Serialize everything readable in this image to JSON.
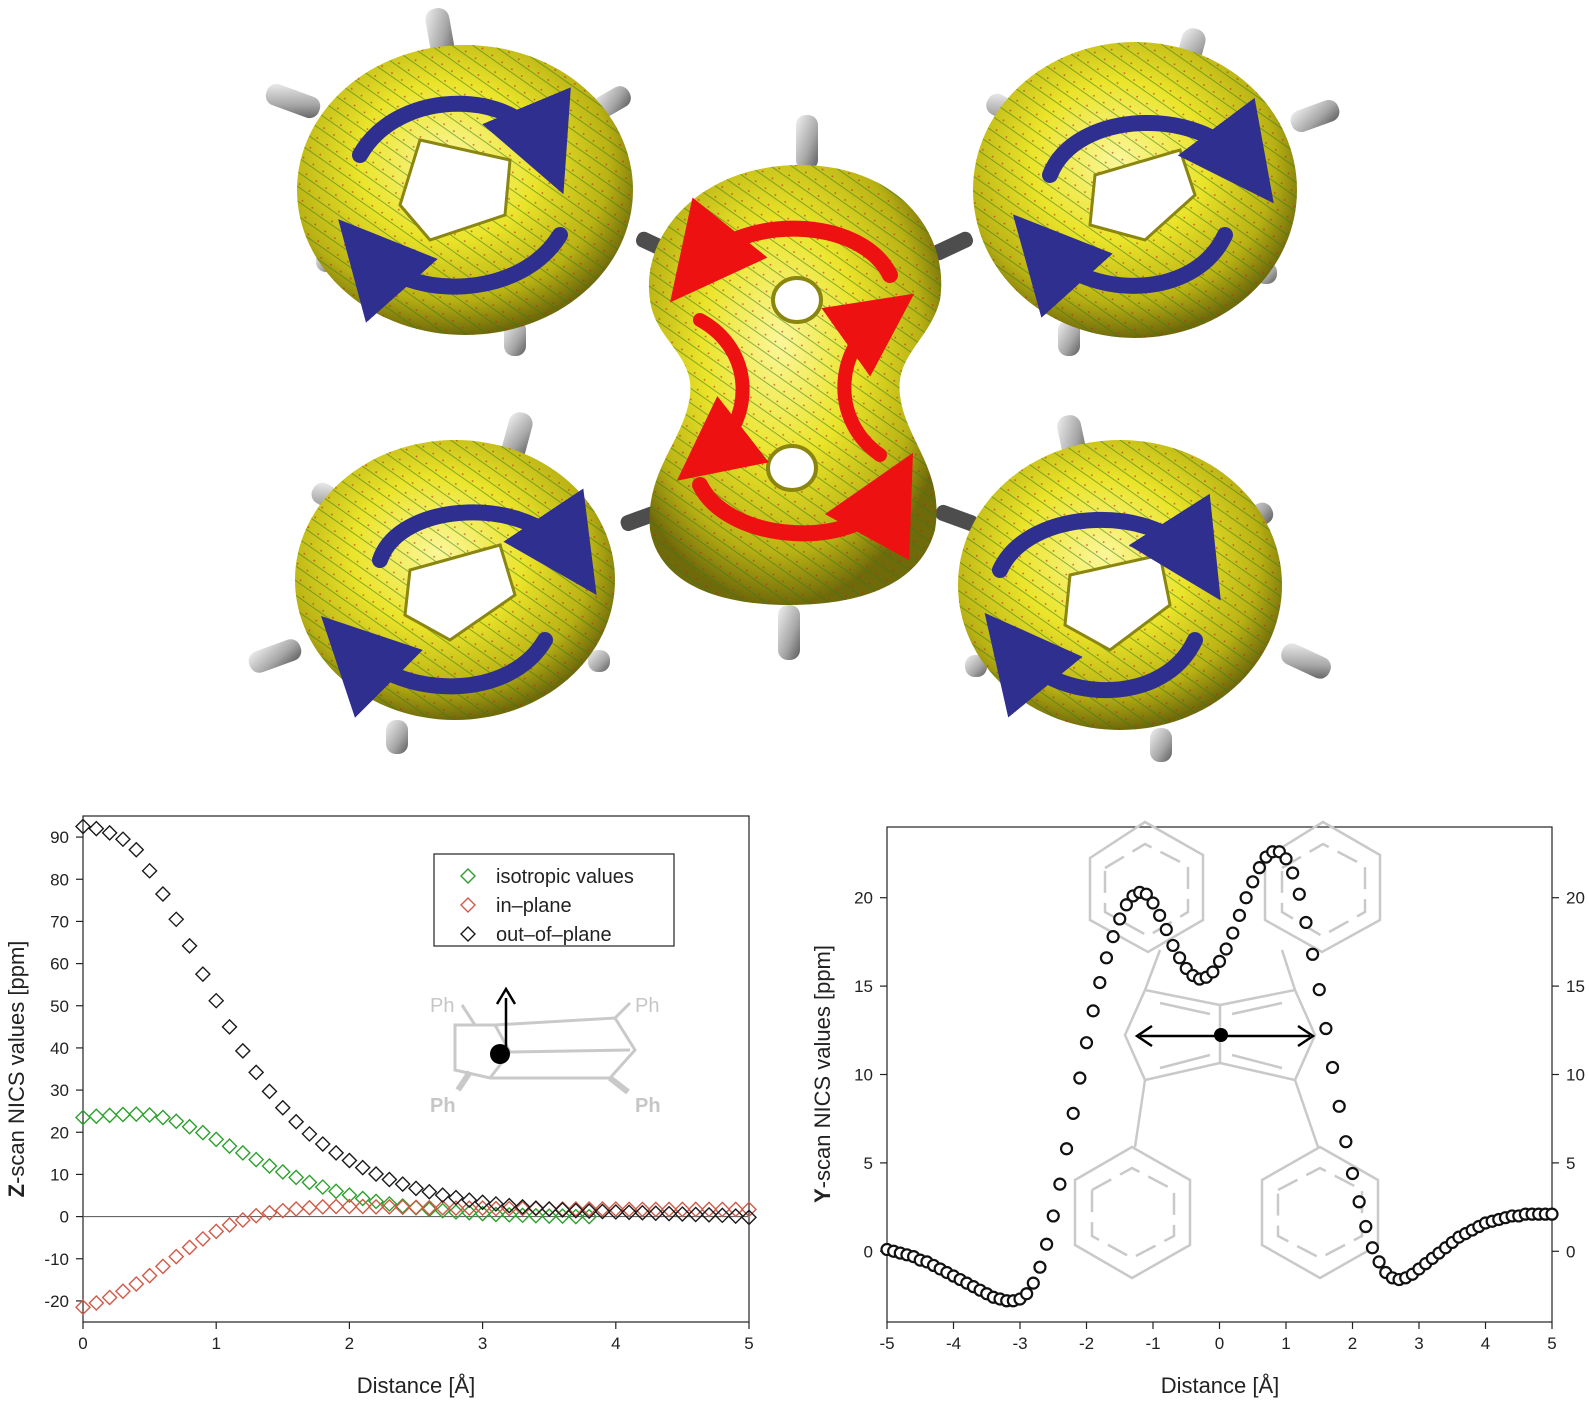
{
  "chart_data": [
    {
      "type": "scatter",
      "xlabel": "Distance [Å]",
      "ylabel_bold": "Z",
      "ylabel_rest": "-scan NICS values [ppm]",
      "xlim": [
        0,
        5
      ],
      "ylim": [
        -25,
        95
      ],
      "xticks": [
        "0",
        "1",
        "2",
        "3",
        "4",
        "5"
      ],
      "yticks": [
        "-20",
        "-10",
        "0",
        "10",
        "20",
        "30",
        "40",
        "50",
        "60",
        "70",
        "80",
        "90"
      ],
      "zero_line": true,
      "legend": {
        "position": "top-right"
      },
      "series": [
        {
          "name": "isotropic values",
          "color": "#2ca02c",
          "x": [
            0.0,
            0.1,
            0.2,
            0.3,
            0.4,
            0.5,
            0.6,
            0.7,
            0.8,
            0.9,
            1.0,
            1.1,
            1.2,
            1.3,
            1.4,
            1.5,
            1.6,
            1.7,
            1.8,
            1.9,
            2.0,
            2.1,
            2.2,
            2.3,
            2.4,
            2.5,
            2.6,
            2.7,
            2.8,
            2.9,
            3.0,
            3.1,
            3.2,
            3.3,
            3.4,
            3.5,
            3.6,
            3.7,
            3.8
          ],
          "y": [
            23.5,
            23.8,
            24.0,
            24.2,
            24.3,
            24.1,
            23.5,
            22.6,
            21.3,
            19.9,
            18.3,
            16.7,
            15.1,
            13.5,
            12.0,
            10.6,
            9.3,
            8.1,
            7.0,
            6.0,
            5.1,
            4.3,
            3.6,
            3.0,
            2.5,
            2.1,
            1.7,
            1.4,
            1.1,
            0.9,
            0.7,
            0.5,
            0.4,
            0.3,
            0.2,
            0.1,
            0.1,
            0.0,
            0.0
          ]
        },
        {
          "name": "in–plane",
          "color": "#d05a48",
          "x": [
            0.0,
            0.1,
            0.2,
            0.3,
            0.4,
            0.5,
            0.6,
            0.7,
            0.8,
            0.9,
            1.0,
            1.1,
            1.2,
            1.3,
            1.4,
            1.5,
            1.6,
            1.7,
            1.8,
            1.9,
            2.0,
            2.1,
            2.2,
            2.3,
            2.4,
            2.5,
            2.6,
            2.7,
            2.8,
            2.9,
            3.0,
            3.1,
            3.2,
            3.3,
            3.4,
            3.5,
            3.6,
            3.7,
            3.8,
            3.9,
            4.0,
            4.1,
            4.2,
            4.3,
            4.4,
            4.5,
            4.6,
            4.7,
            4.8,
            4.9,
            5.0
          ],
          "y": [
            -21.5,
            -20.5,
            -19.2,
            -17.7,
            -16.0,
            -14.0,
            -11.8,
            -9.5,
            -7.3,
            -5.3,
            -3.5,
            -2.0,
            -0.8,
            0.2,
            0.9,
            1.4,
            1.8,
            2.1,
            2.3,
            2.4,
            2.4,
            2.4,
            2.3,
            2.3,
            2.2,
            2.2,
            2.1,
            2.1,
            2.0,
            2.0,
            2.0,
            1.9,
            1.9,
            1.9,
            1.9,
            1.8,
            1.8,
            1.8,
            1.8,
            1.8,
            1.8,
            1.7,
            1.7,
            1.7,
            1.7,
            1.7,
            1.7,
            1.7,
            1.7,
            1.7,
            1.7
          ]
        },
        {
          "name": "out–of–plane",
          "color": "#1a1a1a",
          "x": [
            0.0,
            0.1,
            0.2,
            0.3,
            0.4,
            0.5,
            0.6,
            0.7,
            0.8,
            0.9,
            1.0,
            1.1,
            1.2,
            1.3,
            1.4,
            1.5,
            1.6,
            1.7,
            1.8,
            1.9,
            2.0,
            2.1,
            2.2,
            2.3,
            2.4,
            2.5,
            2.6,
            2.7,
            2.8,
            2.9,
            3.0,
            3.1,
            3.2,
            3.3,
            3.4,
            3.5,
            3.6,
            3.7,
            3.8,
            3.9,
            4.0,
            4.1,
            4.2,
            4.3,
            4.4,
            4.5,
            4.6,
            4.7,
            4.8,
            4.9,
            5.0
          ],
          "y": [
            92.5,
            92.0,
            91.0,
            89.5,
            87.0,
            82.0,
            76.5,
            70.5,
            64.2,
            57.5,
            51.2,
            45.0,
            39.3,
            34.2,
            29.7,
            25.8,
            22.5,
            19.6,
            17.2,
            15.1,
            13.3,
            11.6,
            10.1,
            8.8,
            7.7,
            6.7,
            5.9,
            5.1,
            4.5,
            3.9,
            3.4,
            3.0,
            2.6,
            2.3,
            2.0,
            1.8,
            1.6,
            1.4,
            1.3,
            1.2,
            1.1,
            1.0,
            0.9,
            0.8,
            0.7,
            0.6,
            0.5,
            0.4,
            0.3,
            0.1,
            -0.2
          ]
        }
      ],
      "inset_labels": [
        "Ph",
        "Ph",
        "Ph",
        "Ph"
      ]
    },
    {
      "type": "scatter",
      "xlabel": "Distance [Å]",
      "ylabel_bold": "Y",
      "ylabel_rest": "-scan NICS values [ppm]",
      "xlim": [
        -5,
        5
      ],
      "ylim": [
        -4,
        24
      ],
      "xticks": [
        "-5",
        "-4",
        "-3",
        "-2",
        "-1",
        "0",
        "1",
        "2",
        "3",
        "4",
        "5"
      ],
      "yticks": [
        "0",
        "5",
        "10",
        "15",
        "20"
      ],
      "right_yticks": [
        "0",
        "5",
        "10",
        "15",
        "20"
      ],
      "series": [
        {
          "name": "",
          "color": "#111111",
          "x": [
            -5.0,
            -4.9,
            -4.8,
            -4.7,
            -4.6,
            -4.5,
            -4.4,
            -4.3,
            -4.2,
            -4.1,
            -4.0,
            -3.9,
            -3.8,
            -3.7,
            -3.6,
            -3.5,
            -3.4,
            -3.3,
            -3.2,
            -3.1,
            -3.0,
            -2.9,
            -2.8,
            -2.7,
            -2.6,
            -2.5,
            -2.4,
            -2.3,
            -2.2,
            -2.1,
            -2.0,
            -1.9,
            -1.8,
            -1.7,
            -1.6,
            -1.5,
            -1.4,
            -1.3,
            -1.2,
            -1.1,
            -1.0,
            -0.9,
            -0.8,
            -0.7,
            -0.6,
            -0.5,
            -0.4,
            -0.3,
            -0.2,
            -0.1,
            0.0,
            0.1,
            0.2,
            0.3,
            0.4,
            0.5,
            0.6,
            0.7,
            0.8,
            0.9,
            1.0,
            1.1,
            1.2,
            1.3,
            1.4,
            1.5,
            1.6,
            1.7,
            1.8,
            1.9,
            2.0,
            2.1,
            2.2,
            2.3,
            2.4,
            2.5,
            2.6,
            2.7,
            2.8,
            2.9,
            3.0,
            3.1,
            3.2,
            3.3,
            3.4,
            3.5,
            3.6,
            3.7,
            3.8,
            3.9,
            4.0,
            4.1,
            4.2,
            4.3,
            4.4,
            4.5,
            4.6,
            4.7,
            4.8,
            4.9,
            5.0
          ],
          "y": [
            0.1,
            0.0,
            -0.1,
            -0.2,
            -0.3,
            -0.5,
            -0.6,
            -0.8,
            -1.0,
            -1.2,
            -1.4,
            -1.6,
            -1.8,
            -2.0,
            -2.2,
            -2.4,
            -2.6,
            -2.7,
            -2.8,
            -2.8,
            -2.7,
            -2.4,
            -1.8,
            -0.9,
            0.4,
            2.0,
            3.8,
            5.8,
            7.8,
            9.8,
            11.8,
            13.6,
            15.2,
            16.6,
            17.8,
            18.8,
            19.6,
            20.1,
            20.3,
            20.2,
            19.7,
            19.0,
            18.2,
            17.3,
            16.6,
            16.0,
            15.6,
            15.4,
            15.5,
            15.8,
            16.4,
            17.1,
            18.0,
            19.0,
            20.0,
            20.9,
            21.7,
            22.3,
            22.6,
            22.6,
            22.2,
            21.4,
            20.2,
            18.6,
            16.8,
            14.8,
            12.6,
            10.4,
            8.2,
            6.2,
            4.4,
            2.8,
            1.4,
            0.2,
            -0.6,
            -1.2,
            -1.5,
            -1.6,
            -1.5,
            -1.3,
            -1.0,
            -0.7,
            -0.4,
            -0.1,
            0.2,
            0.5,
            0.8,
            1.0,
            1.2,
            1.4,
            1.6,
            1.7,
            1.8,
            1.9,
            2.0,
            2.0,
            2.1,
            2.1,
            2.1,
            2.1,
            2.1
          ]
        }
      ]
    }
  ],
  "colors": {
    "isosurface": "#e8e020",
    "diatropic_arrows": "#2f2f8f",
    "paratropic_arrows": "#ee1111",
    "hydrogen_caps": "#a8a8a8"
  }
}
